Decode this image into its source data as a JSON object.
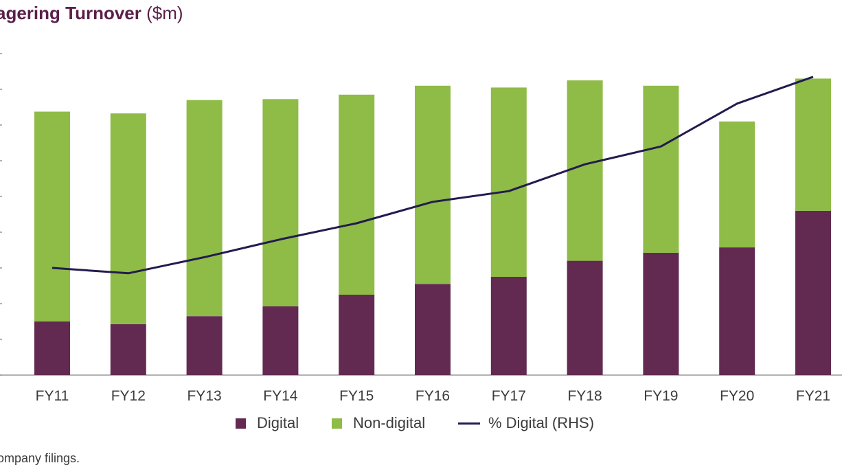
{
  "title": {
    "bold": "agering Turnover",
    "unit": "($m)"
  },
  "source": "ompany filings.",
  "legend": {
    "digital": "Digital",
    "nondigital": "Non-digital",
    "pct": "% Digital (RHS)"
  },
  "colors": {
    "digital": "#622a51",
    "nondigital": "#8fbb47",
    "line": "#231b4f",
    "axis": "#999999",
    "title": "#5a1f4a"
  },
  "chart_data": {
    "type": "bar",
    "stacked": true,
    "categories": [
      "FY11",
      "FY12",
      "FY13",
      "FY14",
      "FY15",
      "FY16",
      "FY17",
      "FY18",
      "FY19",
      "FY20",
      "FY21"
    ],
    "series": [
      {
        "name": "Digital",
        "values": [
          30,
          28.5,
          33,
          38.5,
          45,
          51,
          55,
          64,
          68.5,
          71.5,
          92
        ]
      },
      {
        "name": "Non-digital",
        "values": [
          117.5,
          118,
          121,
          116,
          112,
          111,
          106,
          101,
          93.5,
          70.5,
          74
        ]
      }
    ],
    "line_series": {
      "name": "% Digital (RHS)",
      "axis": "right",
      "values": [
        30,
        28.5,
        33,
        38,
        42.5,
        48.5,
        51.5,
        59,
        64,
        76,
        83.5
      ]
    },
    "ylim": [
      0,
      180
    ],
    "y2lim": [
      0,
      90
    ],
    "xlabel": "",
    "ylabel": "",
    "legend_position": "bottom-center",
    "grid": false
  }
}
